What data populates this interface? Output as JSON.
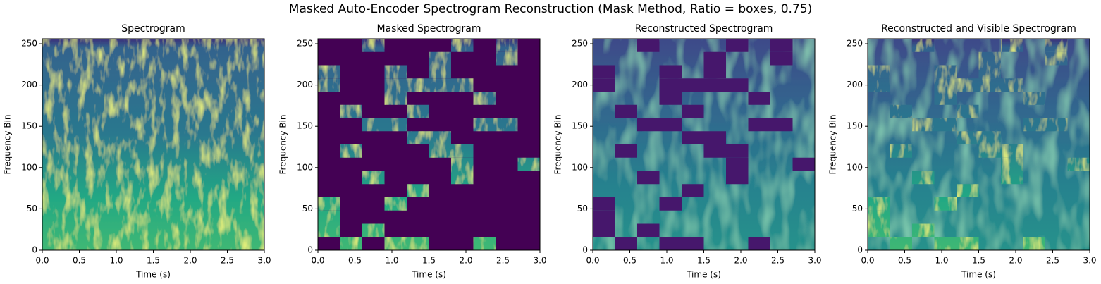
{
  "title": "Masked Auto-Encoder Spectrogram Reconstruction (Mask Method, Ratio = boxes, 0.75)",
  "visible_patches": [
    [
      0.6,
      0.9,
      240,
      256
    ],
    [
      1.8,
      2.1,
      240,
      256
    ],
    [
      2.4,
      2.7,
      240,
      256
    ],
    [
      1.5,
      1.8,
      224,
      240
    ],
    [
      2.4,
      2.7,
      224,
      240
    ],
    [
      0,
      0.3,
      208,
      224
    ],
    [
      0.9,
      1.2,
      208,
      224
    ],
    [
      1.5,
      1.8,
      208,
      224
    ],
    [
      0,
      0.3,
      192,
      208
    ],
    [
      0.9,
      1.2,
      192,
      208
    ],
    [
      1.2,
      1.5,
      192,
      208
    ],
    [
      1.5,
      1.8,
      192,
      208
    ],
    [
      1.8,
      2.1,
      192,
      208
    ],
    [
      0.9,
      1.2,
      176,
      192
    ],
    [
      2.1,
      2.4,
      176,
      192
    ],
    [
      0.3,
      0.6,
      160,
      176
    ],
    [
      1.2,
      1.5,
      160,
      176
    ],
    [
      0.6,
      0.9,
      144,
      160
    ],
    [
      0.9,
      1.2,
      144,
      160
    ],
    [
      2.1,
      2.4,
      144,
      160
    ],
    [
      2.4,
      2.7,
      144,
      160
    ],
    [
      1.2,
      1.5,
      128,
      144
    ],
    [
      1.5,
      1.8,
      128,
      144
    ],
    [
      0.3,
      0.6,
      112,
      128
    ],
    [
      1.5,
      1.8,
      112,
      128
    ],
    [
      1.8,
      2.1,
      112,
      128
    ],
    [
      1.8,
      2.1,
      96,
      112
    ],
    [
      2.7,
      3,
      96,
      112
    ],
    [
      0.6,
      0.9,
      80,
      96
    ],
    [
      1.8,
      2.1,
      80,
      96
    ],
    [
      1.2,
      1.5,
      64,
      80
    ],
    [
      0,
      0.3,
      48,
      64
    ],
    [
      0.9,
      1.2,
      48,
      64
    ],
    [
      0,
      0.3,
      32,
      48
    ],
    [
      0,
      0.3,
      16,
      32
    ],
    [
      0.6,
      0.9,
      16,
      32
    ],
    [
      0.3,
      0.6,
      0,
      16
    ],
    [
      0.9,
      1.2,
      0,
      16
    ],
    [
      1.2,
      1.5,
      0,
      16
    ],
    [
      2.1,
      2.4,
      0,
      16
    ]
  ],
  "chart_data": [
    {
      "type": "heatmap",
      "title": "Spectrogram",
      "xlabel": "Time (s)",
      "ylabel": "Frequency Bin",
      "base": "spectrogram",
      "dark": null,
      "visible_fill": null,
      "dark_color": "#440154",
      "xlim": [
        0,
        3
      ],
      "ylim": [
        0,
        256
      ],
      "xticks": [
        {
          "value": 0,
          "label": "0.0"
        },
        0.5,
        {
          "value": 1,
          "label": "1.0"
        },
        1.5,
        {
          "value": 2,
          "label": "2.0"
        },
        2.5,
        {
          "value": 3,
          "label": "3.0"
        }
      ],
      "yticks": [
        0,
        50,
        100,
        150,
        200,
        250
      ]
    },
    {
      "type": "heatmap",
      "title": "Masked Spectrogram",
      "xlabel": "Time (s)",
      "ylabel": "Frequency Bin",
      "base": "spectrogram",
      "dark": "masked",
      "visible_fill": null,
      "dark_color": "#440154",
      "xlim": [
        0,
        3
      ],
      "ylim": [
        0,
        256
      ],
      "xticks": [
        {
          "value": 0,
          "label": "0.0"
        },
        0.5,
        {
          "value": 1,
          "label": "1.0"
        },
        1.5,
        {
          "value": 2,
          "label": "2.0"
        },
        2.5,
        {
          "value": 3,
          "label": "3.0"
        }
      ],
      "yticks": [
        0,
        50,
        100,
        150,
        200,
        250
      ]
    },
    {
      "type": "heatmap",
      "title": "Reconstructed Spectrogram",
      "xlabel": "Time (s)",
      "ylabel": "Frequency Bin",
      "base": "reconstruction",
      "dark": "visible",
      "visible_fill": null,
      "dark_color": "#46176c",
      "xlim": [
        0,
        3
      ],
      "ylim": [
        0,
        256
      ],
      "xticks": [
        {
          "value": 0,
          "label": "0.0"
        },
        0.5,
        {
          "value": 1,
          "label": "1.0"
        },
        1.5,
        {
          "value": 2,
          "label": "2.0"
        },
        2.5,
        {
          "value": 3,
          "label": "3.0"
        }
      ],
      "yticks": [
        0,
        50,
        100,
        150,
        200,
        250
      ]
    },
    {
      "type": "heatmap",
      "title": "Reconstructed and Visible Spectrogram",
      "xlabel": "Time (s)",
      "ylabel": "Frequency Bin",
      "base": "reconstruction",
      "dark": null,
      "visible_fill": "spectrogram",
      "dark_color": "#440154",
      "xlim": [
        0,
        3
      ],
      "ylim": [
        0,
        256
      ],
      "xticks": [
        {
          "value": 0,
          "label": "0.0"
        },
        0.5,
        {
          "value": 1,
          "label": "1.0"
        },
        1.5,
        {
          "value": 2,
          "label": "2.0"
        },
        2.5,
        {
          "value": 3,
          "label": "3.0"
        }
      ],
      "yticks": [
        0,
        50,
        100,
        150,
        200,
        250
      ]
    }
  ]
}
